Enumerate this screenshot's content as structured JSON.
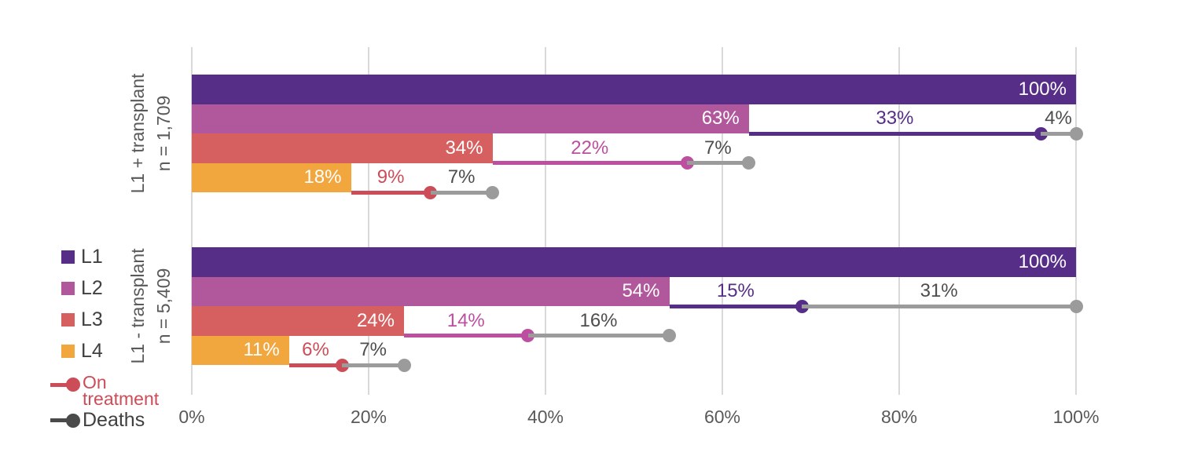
{
  "chart_data": {
    "type": "bar",
    "orientation": "horizontal",
    "description": "Treatment line attrition: share of patients reaching each line (bars), still on treatment of prior line (colored lollipop), and deaths (grey lollipop)",
    "x_axis": {
      "ticks": [
        "0%",
        "20%",
        "40%",
        "60%",
        "80%",
        "100%"
      ],
      "min": 0,
      "max": 100,
      "unit": "%",
      "grid": true
    },
    "series_colors": {
      "L1": "#572e87",
      "L2": "#b1589c",
      "L3": "#d65f5f",
      "L4": "#f2a63e"
    },
    "deaths_line_color": "#9b9b9b",
    "deaths_text_color": "#4d4d4d",
    "legend": [
      {
        "label": "L1",
        "swatch": "square",
        "color": "#572e87"
      },
      {
        "label": "L2",
        "swatch": "square",
        "color": "#b1589c"
      },
      {
        "label": "L3",
        "swatch": "square",
        "color": "#d65f5f"
      },
      {
        "label": "L4",
        "swatch": "square",
        "color": "#f2a63e"
      },
      {
        "label": "On treatment",
        "swatch": "lollipop",
        "color": "#cc4d58"
      },
      {
        "label": "Deaths",
        "swatch": "lollipop",
        "color": "#4a4a4a"
      }
    ],
    "groups": [
      {
        "label": "L1 + transplant",
        "n_label": "n = 1,709",
        "rows": [
          {
            "series": "L1",
            "value": 100,
            "label": "100%"
          },
          {
            "series": "L2",
            "value": 63,
            "label": "63%",
            "on_treatment": {
              "value": 33,
              "label": "33%",
              "color": "#572e87"
            },
            "deaths": {
              "value": 4,
              "label": "4%"
            }
          },
          {
            "series": "L3",
            "value": 34,
            "label": "34%",
            "on_treatment": {
              "value": 22,
              "label": "22%",
              "color": "#bc4f9f"
            },
            "deaths": {
              "value": 7,
              "label": "7%"
            }
          },
          {
            "series": "L4",
            "value": 18,
            "label": "18%",
            "on_treatment": {
              "value": 9,
              "label": "9%",
              "color": "#cc4d58"
            },
            "deaths": {
              "value": 7,
              "label": "7%"
            }
          }
        ]
      },
      {
        "label": "L1 - transplant",
        "n_label": "n = 5,409",
        "rows": [
          {
            "series": "L1",
            "value": 100,
            "label": "100%"
          },
          {
            "series": "L2",
            "value": 54,
            "label": "54%",
            "on_treatment": {
              "value": 15,
              "label": "15%",
              "color": "#572e87"
            },
            "deaths": {
              "value": 31,
              "label": "31%"
            }
          },
          {
            "series": "L3",
            "value": 24,
            "label": "24%",
            "on_treatment": {
              "value": 14,
              "label": "14%",
              "color": "#bc4f9f"
            },
            "deaths": {
              "value": 16,
              "label": "16%"
            }
          },
          {
            "series": "L4",
            "value": 11,
            "label": "11%",
            "on_treatment": {
              "value": 6,
              "label": "6%",
              "color": "#cc4d58"
            },
            "deaths": {
              "value": 7,
              "label": "7%"
            }
          }
        ]
      }
    ]
  },
  "styles": {
    "gridline_color": "#d9d9d9",
    "axis_text_color": "#595959",
    "group_label_color": "#595959",
    "bar_label_color": "#ffffff",
    "legend_text_color": "#404040",
    "on_treatment_legend_color": "#cc4d58"
  }
}
